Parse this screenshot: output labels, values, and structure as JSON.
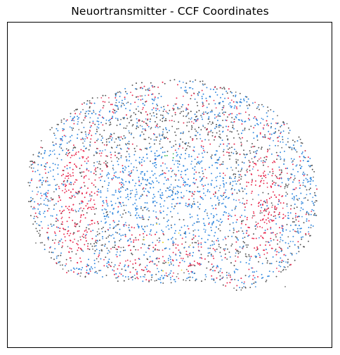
{
  "chart_data": {
    "type": "scatter",
    "title": "Neuortransmitter - CCF Coordinates",
    "xlabel": "",
    "ylabel": "",
    "axes_visible": false,
    "ticks": "none",
    "grid": false,
    "legend": "none",
    "subject": "coronal section of mouse brain, cells colored by neurotransmitter type",
    "series": [
      {
        "color": "#555555",
        "role": "background cells",
        "distribution": "whole section, dense along outer contour, thalamus fringe and hippocampal layers"
      },
      {
        "color": "#2e86de",
        "role": "cortex layers and central thalamic mass",
        "distribution": "cortex bands and large central body"
      },
      {
        "color": "#e8234a",
        "role": "lateral striatal regions",
        "distribution": "bilateral lateral wings plus scattered throughout"
      },
      {
        "color": "#2db34a",
        "role": "small midline cluster",
        "distribution": "green spot near midline top of thalamus"
      },
      {
        "color": "#e8d21e",
        "role": "rare cells",
        "distribution": "few points near ventral midline"
      }
    ]
  }
}
